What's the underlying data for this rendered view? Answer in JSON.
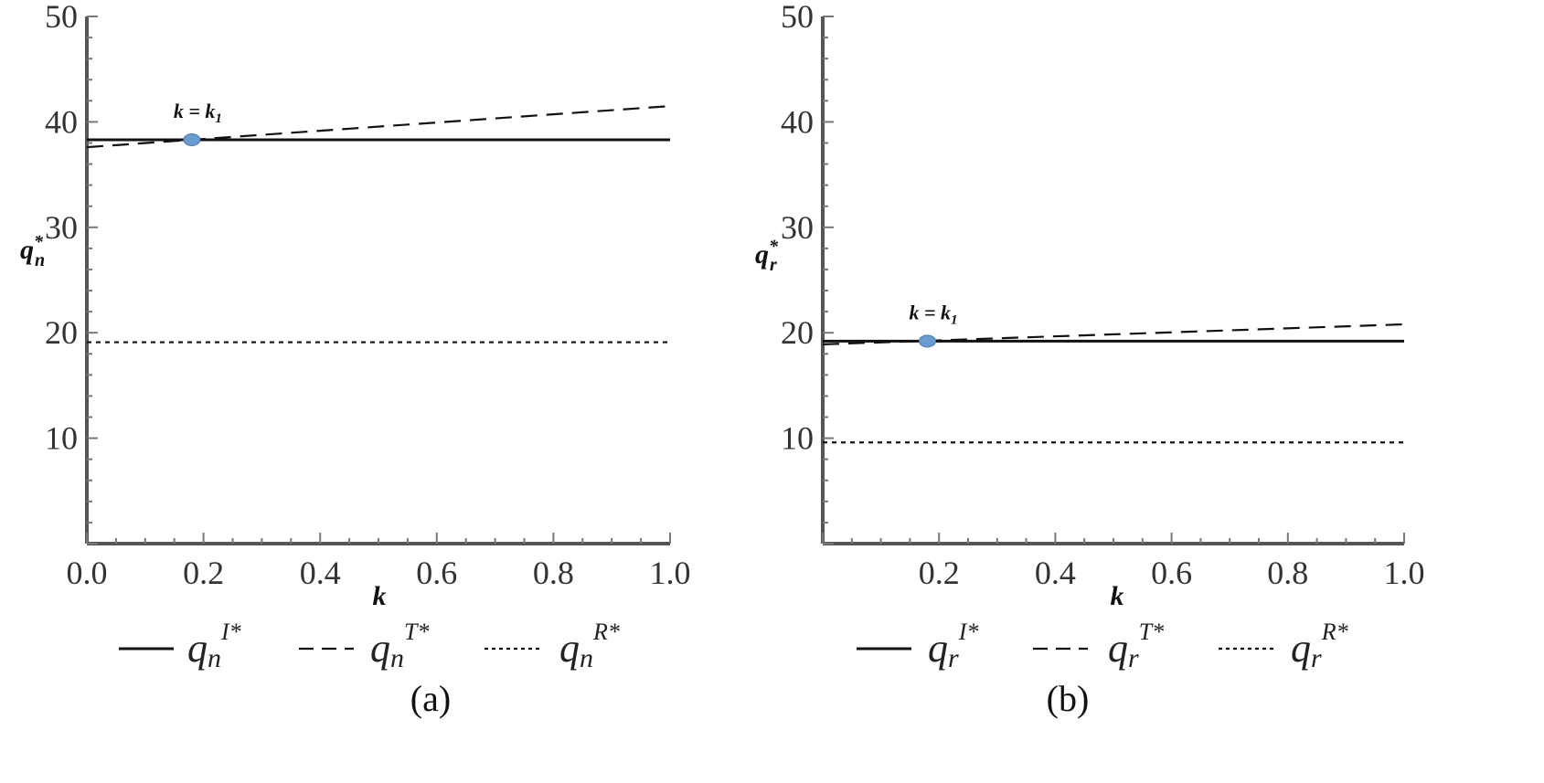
{
  "chart_data": [
    {
      "type": "line",
      "panel_caption": "(a)",
      "xlabel": "k",
      "ylabel": "q",
      "ylabel_sub": "n",
      "ylabel_sup": "*",
      "xlim": [
        0,
        1
      ],
      "ylim": [
        0,
        50
      ],
      "xticks": [
        0.0,
        0.2,
        0.4,
        0.6,
        0.8,
        1.0
      ],
      "xtick_labels": [
        "0.0",
        "0.2",
        "0.4",
        "0.6",
        "0.8",
        "1.0"
      ],
      "yticks": [
        10,
        20,
        30,
        40,
        50
      ],
      "ytick_labels": [
        "10",
        "20",
        "30",
        "40",
        "50"
      ],
      "grid": false,
      "legend_position": "bottom",
      "series": [
        {
          "name_base": "q",
          "name_sub": "n",
          "name_sup": "I*",
          "style": "solid",
          "x": [
            0,
            1
          ],
          "y": [
            38.3,
            38.3
          ]
        },
        {
          "name_base": "q",
          "name_sub": "n",
          "name_sup": "T*",
          "style": "dashed",
          "x": [
            0,
            1
          ],
          "y": [
            37.6,
            41.5
          ]
        },
        {
          "name_base": "q",
          "name_sub": "n",
          "name_sup": "R*",
          "style": "dotted",
          "x": [
            0,
            1
          ],
          "y": [
            19.1,
            19.1
          ]
        }
      ],
      "annotation": {
        "text_left": "k = k",
        "text_sub": "1",
        "x": 0.18,
        "y": 38.3
      }
    },
    {
      "type": "line",
      "panel_caption": "(b)",
      "xlabel": "k",
      "ylabel": "q",
      "ylabel_sub": "r",
      "ylabel_sup": "*",
      "xlim": [
        0,
        1
      ],
      "ylim": [
        0,
        50
      ],
      "xticks": [
        0.2,
        0.4,
        0.6,
        0.8,
        1.0
      ],
      "xtick_labels": [
        "0.2",
        "0.4",
        "0.6",
        "0.8",
        "1.0"
      ],
      "yticks": [
        10,
        20,
        30,
        40,
        50
      ],
      "ytick_labels": [
        "10",
        "20",
        "30",
        "40",
        "50"
      ],
      "grid": false,
      "legend_position": "bottom",
      "series": [
        {
          "name_base": "q",
          "name_sub": "r",
          "name_sup": "I*",
          "style": "solid",
          "x": [
            0,
            1
          ],
          "y": [
            19.2,
            19.2
          ]
        },
        {
          "name_base": "q",
          "name_sub": "r",
          "name_sup": "T*",
          "style": "dashed",
          "x": [
            0,
            1
          ],
          "y": [
            18.9,
            20.8
          ]
        },
        {
          "name_base": "q",
          "name_sub": "r",
          "name_sup": "R*",
          "style": "dotted",
          "x": [
            0,
            1
          ],
          "y": [
            9.6,
            9.6
          ]
        }
      ],
      "annotation": {
        "text_left": "k = k",
        "text_sub": "1",
        "x": 0.18,
        "y": 19.2
      }
    }
  ]
}
